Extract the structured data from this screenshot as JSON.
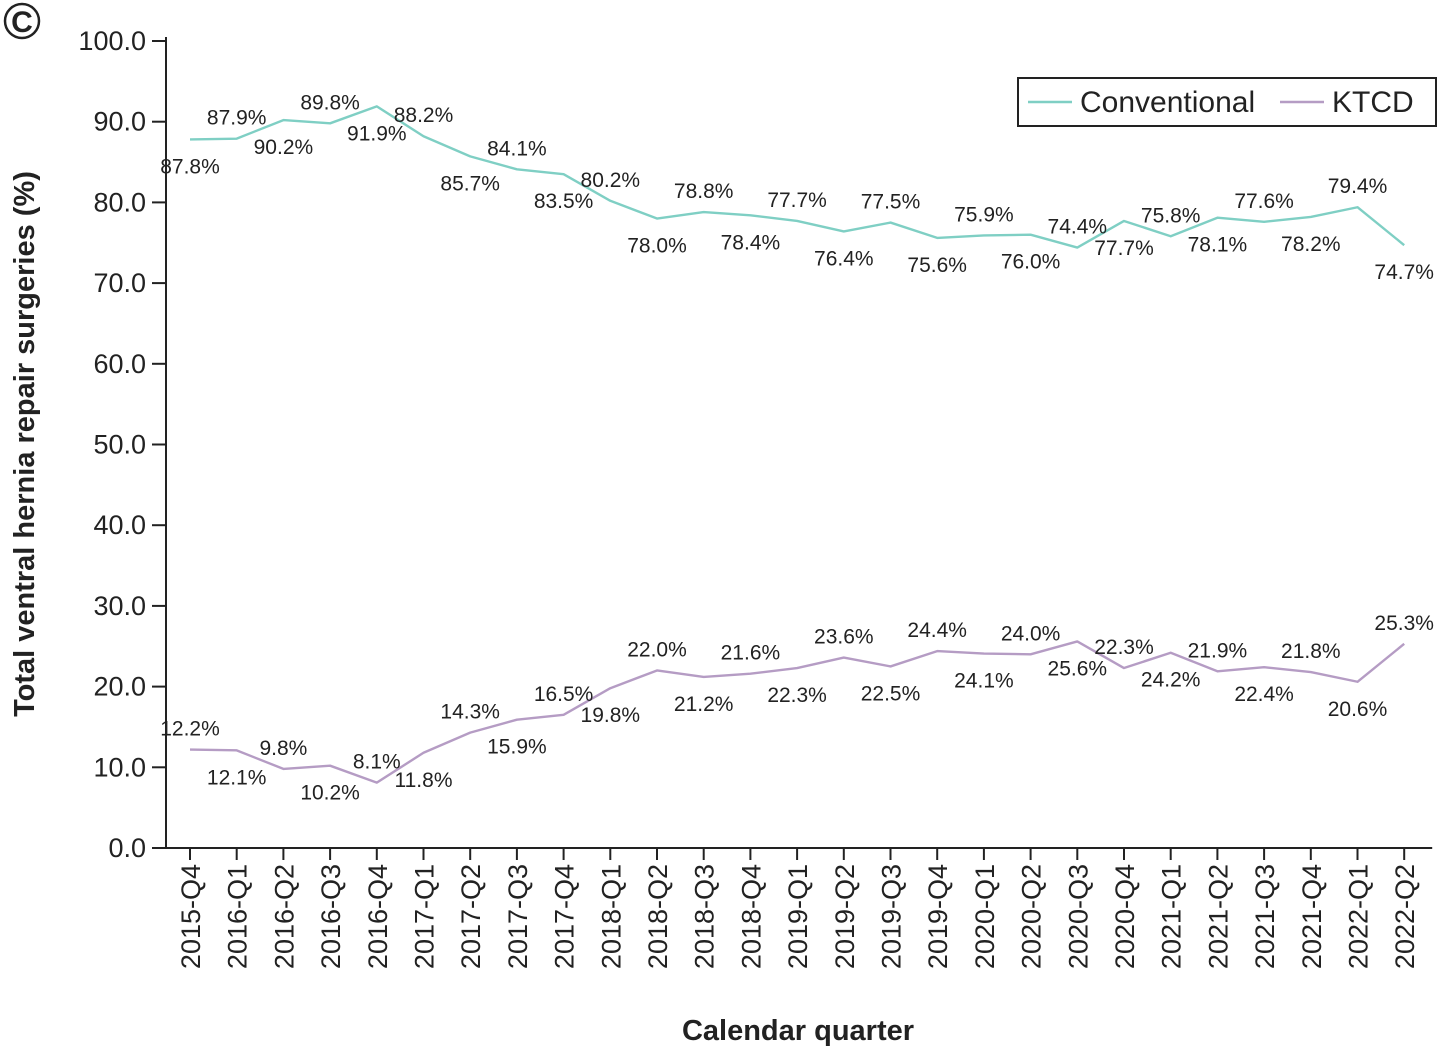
{
  "panel_label": "C",
  "chart_data": {
    "type": "line",
    "categories": [
      "2015-Q4",
      "2016-Q1",
      "2016-Q2",
      "2016-Q3",
      "2016-Q4",
      "2017-Q1",
      "2017-Q2",
      "2017-Q3",
      "2017-Q4",
      "2018-Q1",
      "2018-Q2",
      "2018-Q3",
      "2018-Q4",
      "2019-Q1",
      "2019-Q2",
      "2019-Q3",
      "2019-Q4",
      "2020-Q1",
      "2020-Q2",
      "2020-Q3",
      "2020-Q4",
      "2021-Q1",
      "2021-Q2",
      "2021-Q3",
      "2021-Q4",
      "2022-Q1",
      "2022-Q2"
    ],
    "series": [
      {
        "name": "Conventional",
        "color": "#7fcfc4",
        "values": [
          87.8,
          87.9,
          90.2,
          89.8,
          91.9,
          88.2,
          85.7,
          84.1,
          83.5,
          80.2,
          78.0,
          78.8,
          78.4,
          77.7,
          76.4,
          77.5,
          75.6,
          75.9,
          76.0,
          74.4,
          77.7,
          75.8,
          78.1,
          77.6,
          78.2,
          79.4,
          74.7
        ],
        "labels": [
          "87.8%",
          "87.9%",
          "90.2%",
          "89.8%",
          "91.9%",
          "88.2%",
          "85.7%",
          "84.1%",
          "83.5%",
          "80.2%",
          "78.0%",
          "78.8%",
          "78.4%",
          "77.7%",
          "76.4%",
          "77.5%",
          "75.6%",
          "75.9%",
          "76.0%",
          "74.4%",
          "77.7%",
          "75.8%",
          "78.1%",
          "77.6%",
          "78.2%",
          "79.4%",
          "74.7%"
        ],
        "label_positions": [
          "below",
          "above",
          "below",
          "above",
          "below",
          "above",
          "below",
          "above",
          "below",
          "above",
          "below",
          "above",
          "below",
          "above",
          "below",
          "above",
          "below",
          "above",
          "below",
          "above",
          "below",
          "above",
          "below",
          "above",
          "below",
          "above",
          "below"
        ]
      },
      {
        "name": "KTCD",
        "color": "#b59cc4",
        "values": [
          12.2,
          12.1,
          9.8,
          10.2,
          8.1,
          11.8,
          14.3,
          15.9,
          16.5,
          19.8,
          22.0,
          21.2,
          21.6,
          22.3,
          23.6,
          22.5,
          24.4,
          24.1,
          24.0,
          25.6,
          22.3,
          24.2,
          21.9,
          22.4,
          21.8,
          20.6,
          25.3
        ],
        "labels": [
          "12.2%",
          "12.1%",
          "9.8%",
          "10.2%",
          "8.1%",
          "11.8%",
          "14.3%",
          "15.9%",
          "16.5%",
          "19.8%",
          "22.0%",
          "21.2%",
          "21.6%",
          "22.3%",
          "23.6%",
          "22.5%",
          "24.4%",
          "24.1%",
          "24.0%",
          "25.6%",
          "22.3%",
          "24.2%",
          "21.9%",
          "22.4%",
          "21.8%",
          "20.6%",
          "25.3%"
        ],
        "label_positions": [
          "above",
          "below",
          "above",
          "below",
          "above",
          "below",
          "above",
          "below",
          "above",
          "below",
          "above",
          "below",
          "above",
          "below",
          "above",
          "below",
          "above",
          "below",
          "above",
          "below",
          "above",
          "below",
          "above",
          "below",
          "above",
          "below",
          "above"
        ]
      }
    ],
    "ylim": [
      0,
      100
    ],
    "yticks": [
      "0.0",
      "10.0",
      "20.0",
      "30.0",
      "40.0",
      "50.0",
      "60.0",
      "70.0",
      "80.0",
      "90.0",
      "100.0"
    ],
    "ytick_values": [
      0,
      10,
      20,
      30,
      40,
      50,
      60,
      70,
      80,
      90,
      100
    ],
    "xlabel": "Calendar quarter",
    "ylabel": "Total ventral hernia repair surgeries (%)",
    "legend_position": "top-right",
    "grid": false
  }
}
